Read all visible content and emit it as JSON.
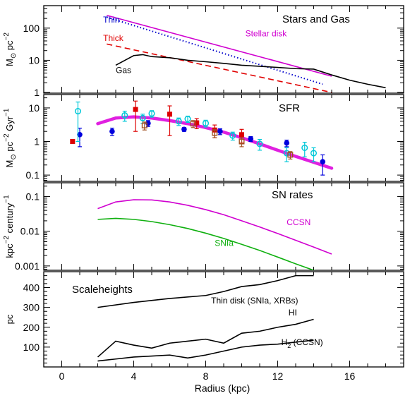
{
  "chart_data": [
    {
      "type": "line",
      "title": "Stars and Gas",
      "ylabel_parts": {
        "main": "M",
        "sub": "⊙",
        "rest": " pc",
        "sup": "−2"
      },
      "yscale": "log",
      "ylim": [
        0.95,
        500
      ],
      "xlim": [
        -1,
        19
      ],
      "yticks": [
        1,
        10,
        100
      ],
      "ytick_labels": [
        "1",
        "10",
        "100"
      ],
      "series": [
        {
          "name": "Stellar disk",
          "color": "#d000d0",
          "style": "solid",
          "x": [
            2.5,
            15
          ],
          "y": [
            250,
            3.2
          ]
        },
        {
          "name": "Thin",
          "color": "#0000cc",
          "style": "dotted",
          "x": [
            2.5,
            14.5
          ],
          "y": [
            220,
            1.8
          ]
        },
        {
          "name": "Thick",
          "color": "#e00000",
          "style": "dashed",
          "x": [
            2.5,
            15
          ],
          "y": [
            32,
            1.0
          ]
        },
        {
          "name": "Gas",
          "color": "#000000",
          "style": "solid",
          "x": [
            3,
            4,
            4.5,
            5,
            6,
            7,
            8,
            9,
            10,
            11,
            12,
            13,
            14,
            15,
            16,
            17,
            18
          ],
          "y": [
            7,
            14,
            15,
            13,
            12,
            10,
            9,
            8,
            7,
            6.5,
            6,
            5.5,
            5.3,
            3.5,
            2.4,
            1.8,
            1.4
          ]
        }
      ],
      "annotations": [
        {
          "text": "Thin",
          "color": "#0000cc",
          "x": 2.3,
          "y": 150
        },
        {
          "text": "Thick",
          "color": "#e00000",
          "x": 2.3,
          "y": 40
        },
        {
          "text": "Stellar disk",
          "color": "#d000d0",
          "x": 10.2,
          "y": 55
        },
        {
          "text": "Gas",
          "color": "#000000",
          "x": 3.0,
          "y": 4
        }
      ]
    },
    {
      "type": "scatter",
      "title": "SFR",
      "ylabel_parts": {
        "main": "M",
        "sub": "⊙",
        "rest": " pc",
        "sup": "−2",
        "rest2": " Gyr",
        "sup2": "−1"
      },
      "yscale": "log",
      "ylim": [
        0.065,
        25
      ],
      "xlim": [
        -1,
        19
      ],
      "yticks": [
        0.1,
        1,
        10
      ],
      "ytick_labels": [
        "0.1",
        "1",
        "10"
      ],
      "fit_curve": {
        "color": "#e020e0",
        "x": [
          2,
          3,
          4,
          5,
          6,
          7,
          8,
          9,
          10,
          11,
          12,
          13,
          14,
          15
        ],
        "y": [
          3.4,
          5.0,
          5.4,
          5.0,
          4.2,
          3.4,
          2.6,
          1.9,
          1.3,
          0.85,
          0.55,
          0.36,
          0.24,
          0.16
        ]
      },
      "series": [
        {
          "name": "blue_filled",
          "color": "#0000dd",
          "marker": "filled-circle",
          "x": [
            1.0,
            2.8,
            4.8,
            6.8,
            8.8,
            10.5,
            12.5,
            14.5
          ],
          "y": [
            1.6,
            2.0,
            3.5,
            2.3,
            2.0,
            1.2,
            0.9,
            0.25
          ],
          "err": [
            0.9,
            0.5,
            0.7,
            0.3,
            0.4,
            0.2,
            0.2,
            0.15
          ]
        },
        {
          "name": "red_filled",
          "color": "#dd0000",
          "marker": "filled-square",
          "x": [
            0.6,
            4.1,
            6.0,
            7.5,
            8.5,
            10.0
          ],
          "y": [
            1.0,
            9.0,
            6.5,
            3.6,
            2.2,
            1.6
          ],
          "err": [
            0,
            7.0,
            5.0,
            1.2,
            0.9,
            0.7
          ]
        },
        {
          "name": "cyan_open",
          "color": "#00c8d8",
          "marker": "open-circle",
          "x": [
            0.9,
            3.5,
            4.5,
            5.0,
            6.5,
            7.0,
            8.0,
            9.5,
            11.0,
            12.5,
            13.5,
            14.0
          ],
          "y": [
            8.0,
            6.0,
            5.0,
            6.8,
            4.0,
            4.7,
            3.5,
            1.5,
            0.85,
            0.45,
            0.65,
            0.45
          ],
          "err": [
            7.0,
            2.0,
            1.5,
            1.5,
            1.0,
            1.0,
            0.8,
            0.4,
            0.3,
            0.2,
            0.3,
            0.2
          ]
        },
        {
          "name": "brown_open",
          "color": "#a05020",
          "marker": "open-square",
          "x": [
            4.6,
            7.3,
            8.5,
            10.0,
            12.7
          ],
          "y": [
            3.0,
            3.4,
            1.8,
            1.0,
            0.4
          ],
          "err": [
            0.8,
            0.8,
            0.5,
            0.3,
            0.1
          ]
        }
      ]
    },
    {
      "type": "line",
      "title": "SN rates",
      "ylabel_parts": {
        "main": "kpc",
        "sup": "−2",
        "rest": " century",
        "sup2": "−1"
      },
      "yscale": "log",
      "ylim": [
        0.00075,
        0.25
      ],
      "xlim": [
        -1,
        19
      ],
      "yticks": [
        0.001,
        0.01,
        0.1
      ],
      "ytick_labels": [
        "0.001",
        "0.01",
        "0.1"
      ],
      "series": [
        {
          "name": "CCSN",
          "color": "#d000d0",
          "style": "solid",
          "x": [
            2,
            3,
            4,
            5,
            6,
            7,
            8,
            9,
            10,
            11,
            12,
            13,
            14,
            15
          ],
          "y": [
            0.045,
            0.07,
            0.081,
            0.08,
            0.07,
            0.056,
            0.042,
            0.03,
            0.02,
            0.0133,
            0.0086,
            0.0055,
            0.0035,
            0.0022
          ]
        },
        {
          "name": "SNIa",
          "color": "#10b010",
          "style": "solid",
          "x": [
            2,
            3,
            4,
            5,
            6,
            7,
            8,
            9,
            10,
            11,
            12,
            13,
            14,
            15
          ],
          "y": [
            0.022,
            0.0235,
            0.022,
            0.019,
            0.0155,
            0.012,
            0.0088,
            0.0062,
            0.0042,
            0.0028,
            0.0018,
            0.00115,
            0.00075,
            0.0005
          ]
        }
      ],
      "annotations": [
        {
          "text": "CCSN",
          "color": "#d000d0",
          "x": 12.5,
          "y": 0.015
        },
        {
          "text": "SNIa",
          "color": "#10b010",
          "x": 8.5,
          "y": 0.0038
        }
      ]
    },
    {
      "type": "line",
      "title": "Scaleheights",
      "ylabel": "pc",
      "xlabel": "Radius (kpc)",
      "yscale": "linear",
      "ylim": [
        0,
        480
      ],
      "xlim": [
        -1,
        19
      ],
      "yticks": [
        100,
        200,
        300,
        400
      ],
      "ytick_labels": [
        "100",
        "200",
        "300",
        "400"
      ],
      "xticks": [
        0,
        4,
        8,
        12,
        16
      ],
      "xtick_labels": [
        "0",
        "4",
        "8",
        "12",
        "16"
      ],
      "series": [
        {
          "name": "Thin disk (SNIa, XRBs)",
          "color": "#000000",
          "x": [
            2,
            4,
            6,
            8,
            9,
            10,
            11,
            12,
            13,
            14
          ],
          "y": [
            300,
            325,
            345,
            360,
            380,
            405,
            415,
            435,
            460,
            460
          ]
        },
        {
          "name": "HI",
          "color": "#000000",
          "x": [
            2,
            3,
            4,
            5,
            6,
            7,
            8,
            9,
            10,
            11,
            12,
            13,
            14
          ],
          "y": [
            50,
            130,
            110,
            95,
            120,
            130,
            140,
            120,
            170,
            180,
            200,
            215,
            240
          ]
        },
        {
          "name": "H2 (CCSN)",
          "color": "#000000",
          "x": [
            2,
            3,
            4,
            5,
            6,
            7,
            8,
            9,
            10,
            11,
            12,
            13,
            14
          ],
          "y": [
            30,
            40,
            50,
            55,
            60,
            45,
            60,
            80,
            100,
            110,
            115,
            125,
            135
          ]
        }
      ],
      "annotations": [
        {
          "text": "Thin disk (SNIa, XRBs)",
          "x": 8.3,
          "y": 320
        },
        {
          "text": "HI",
          "x": 12.6,
          "y": 260
        },
        {
          "text_parts": {
            "main": "H",
            "sub": "2",
            "rest": " (CCSN)"
          },
          "x": 12.2,
          "y": 110
        }
      ]
    }
  ]
}
